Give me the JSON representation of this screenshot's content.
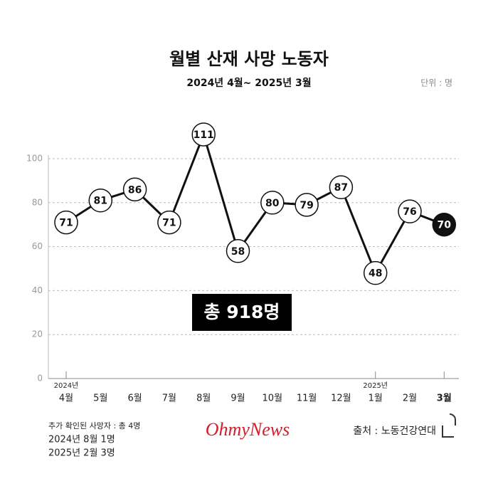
{
  "chart_data": {
    "type": "line",
    "title": "월별 산재 사망 노동자",
    "subtitle": "2024년 4월~ 2025년 3월",
    "unit_label": "단위 : 명",
    "categories": [
      "4월",
      "5월",
      "6월",
      "7월",
      "8월",
      "9월",
      "10월",
      "11월",
      "12월",
      "1월",
      "2월",
      "3월"
    ],
    "year_labels": [
      "2024년",
      null,
      null,
      null,
      null,
      null,
      null,
      null,
      null,
      "2025년",
      null,
      null
    ],
    "values": [
      71,
      81,
      86,
      71,
      111,
      58,
      80,
      79,
      87,
      48,
      76,
      70
    ],
    "color": "#111111",
    "ylim": [
      0,
      100
    ],
    "yticks": [
      0,
      20,
      40,
      60,
      80,
      100
    ],
    "grid": true,
    "total_label": "총 918명",
    "footnotes": [
      "추가 확인된 사망자 : 총 4명",
      "2024년 8월 1명",
      "2025년 2월 3명"
    ],
    "logo": "OhmyNews",
    "source": "출처 : 노동건강연대"
  }
}
